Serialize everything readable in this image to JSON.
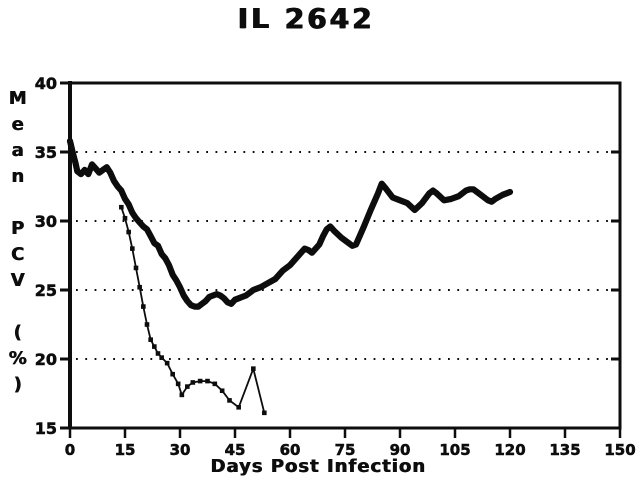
{
  "header": {
    "title": "IL 2642"
  },
  "axes": {
    "x_title": "Days Post Infection",
    "y_title": "Mean PCV (%)"
  },
  "colors": {
    "ink": "#0d0d0d",
    "paper": "#ffffff"
  },
  "chart_data": {
    "type": "line",
    "title": "IL 2642",
    "xlabel": "Days Post Infection",
    "ylabel": "Mean PCV (%)",
    "xlim": [
      0,
      150
    ],
    "ylim": [
      15,
      40
    ],
    "x_ticks": [
      0,
      15,
      30,
      45,
      60,
      75,
      90,
      105,
      120,
      135,
      150
    ],
    "y_ticks": [
      15,
      20,
      25,
      30,
      35,
      40
    ],
    "grid_y_values": [
      20,
      25,
      30,
      35
    ],
    "grid_style": "dotted-horizontal",
    "legend": "none",
    "series": [
      {
        "name": "bold-line",
        "marker": "none",
        "weight": "thick",
        "points": [
          [
            0,
            35.8
          ],
          [
            0.7,
            35.0
          ],
          [
            1.5,
            34.2
          ],
          [
            2,
            33.6
          ],
          [
            3,
            33.4
          ],
          [
            4,
            33.7
          ],
          [
            5,
            33.4
          ],
          [
            6,
            34.1
          ],
          [
            7,
            33.8
          ],
          [
            8,
            33.5
          ],
          [
            9,
            33.7
          ],
          [
            10,
            33.9
          ],
          [
            11,
            33.5
          ],
          [
            12,
            32.9
          ],
          [
            13,
            32.5
          ],
          [
            14,
            32.2
          ],
          [
            15,
            31.6
          ],
          [
            16,
            31.2
          ],
          [
            17,
            30.6
          ],
          [
            18,
            30.2
          ],
          [
            19,
            29.9
          ],
          [
            20,
            29.6
          ],
          [
            21,
            29.4
          ],
          [
            22,
            28.9
          ],
          [
            23,
            28.4
          ],
          [
            24,
            28.2
          ],
          [
            25,
            27.6
          ],
          [
            26,
            27.3
          ],
          [
            27,
            26.8
          ],
          [
            28,
            26.1
          ],
          [
            29,
            25.7
          ],
          [
            30,
            25.2
          ],
          [
            31,
            24.6
          ],
          [
            32,
            24.2
          ],
          [
            33,
            23.9
          ],
          [
            34,
            23.8
          ],
          [
            35,
            23.8
          ],
          [
            36,
            24.0
          ],
          [
            37,
            24.2
          ],
          [
            38,
            24.5
          ],
          [
            39,
            24.6
          ],
          [
            40,
            24.7
          ],
          [
            41,
            24.6
          ],
          [
            42,
            24.4
          ],
          [
            43,
            24.1
          ],
          [
            44,
            24.0
          ],
          [
            45,
            24.3
          ],
          [
            46,
            24.4
          ],
          [
            47,
            24.5
          ],
          [
            48,
            24.6
          ],
          [
            49,
            24.8
          ],
          [
            50,
            25.0
          ],
          [
            52,
            25.2
          ],
          [
            54,
            25.5
          ],
          [
            56,
            25.8
          ],
          [
            58,
            26.4
          ],
          [
            60,
            26.8
          ],
          [
            62,
            27.4
          ],
          [
            64,
            28.0
          ],
          [
            65,
            27.9
          ],
          [
            66,
            27.7
          ],
          [
            67,
            28.0
          ],
          [
            68,
            28.3
          ],
          [
            69,
            28.9
          ],
          [
            70,
            29.4
          ],
          [
            71,
            29.6
          ],
          [
            72,
            29.3
          ],
          [
            74,
            28.8
          ],
          [
            76,
            28.4
          ],
          [
            77,
            28.2
          ],
          [
            78,
            28.3
          ],
          [
            80,
            29.5
          ],
          [
            82,
            30.8
          ],
          [
            84,
            32.0
          ],
          [
            85,
            32.7
          ],
          [
            86,
            32.4
          ],
          [
            88,
            31.7
          ],
          [
            90,
            31.5
          ],
          [
            92,
            31.3
          ],
          [
            94,
            30.8
          ],
          [
            96,
            31.3
          ],
          [
            98,
            32.0
          ],
          [
            99,
            32.2
          ],
          [
            100,
            32.0
          ],
          [
            102,
            31.5
          ],
          [
            104,
            31.6
          ],
          [
            106,
            31.8
          ],
          [
            108,
            32.2
          ],
          [
            109,
            32.3
          ],
          [
            110,
            32.3
          ],
          [
            112,
            31.9
          ],
          [
            114,
            31.5
          ],
          [
            115,
            31.4
          ],
          [
            116,
            31.6
          ],
          [
            118,
            31.9
          ],
          [
            120,
            32.1
          ]
        ]
      },
      {
        "name": "thin-line",
        "marker": "square",
        "weight": "thin",
        "points": [
          [
            14,
            31.0
          ],
          [
            15,
            30.2
          ],
          [
            16,
            29.2
          ],
          [
            17,
            28.0
          ],
          [
            18,
            26.6
          ],
          [
            19,
            25.2
          ],
          [
            20,
            23.8
          ],
          [
            21,
            22.5
          ],
          [
            22,
            21.4
          ],
          [
            23,
            20.9
          ],
          [
            24,
            20.4
          ],
          [
            25,
            20.1
          ],
          [
            26.5,
            19.7
          ],
          [
            28,
            18.9
          ],
          [
            29.5,
            18.2
          ],
          [
            30.5,
            17.4
          ],
          [
            32,
            18.0
          ],
          [
            33.5,
            18.3
          ],
          [
            35.5,
            18.4
          ],
          [
            37.5,
            18.4
          ],
          [
            39.5,
            18.2
          ],
          [
            41.5,
            17.7
          ],
          [
            43.5,
            17.0
          ],
          [
            46,
            16.5
          ],
          [
            50,
            19.3
          ],
          [
            53,
            16.1
          ]
        ]
      }
    ]
  }
}
